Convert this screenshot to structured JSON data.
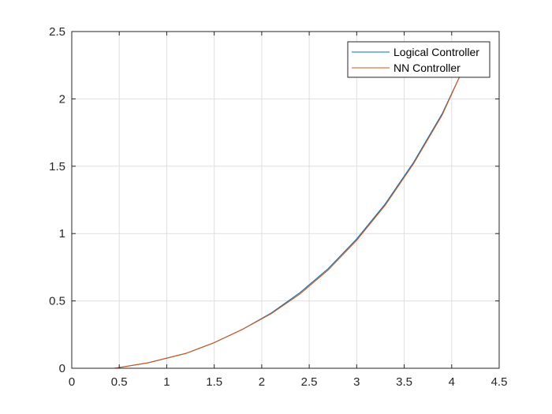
{
  "chart_data": {
    "type": "line",
    "title": "",
    "xlabel": "",
    "ylabel": "",
    "xlim": [
      0,
      4.5
    ],
    "ylim": [
      0,
      2.5
    ],
    "xticks": [
      0,
      0.5,
      1,
      1.5,
      2,
      2.5,
      3,
      3.5,
      4,
      4.5
    ],
    "yticks": [
      0,
      0.5,
      1,
      1.5,
      2,
      2.5
    ],
    "xtick_labels": [
      "0",
      "0.5",
      "1",
      "1.5",
      "2",
      "2.5",
      "3",
      "3.5",
      "4",
      "4.5"
    ],
    "ytick_labels": [
      "0",
      "0.5",
      "1",
      "1.5",
      "2",
      "2.5"
    ],
    "grid": true,
    "legend": {
      "placement": "top-right"
    },
    "series": [
      {
        "name": "Logical Controller",
        "color": "#0072BD",
        "x": [
          0,
          0.45,
          0.8,
          1.2,
          1.5,
          1.8,
          2.1,
          2.4,
          2.7,
          3.0,
          3.3,
          3.6,
          3.9,
          4.1
        ],
        "y": [
          0,
          0,
          0.04,
          0.11,
          0.19,
          0.29,
          0.41,
          0.56,
          0.74,
          0.96,
          1.22,
          1.53,
          1.89,
          2.19
        ]
      },
      {
        "name": "NN Controller",
        "color": "#D95319",
        "x": [
          0,
          0.45,
          0.8,
          1.2,
          1.5,
          1.8,
          2.1,
          2.4,
          2.7,
          3.0,
          3.3,
          3.6,
          3.9,
          4.1
        ],
        "y": [
          0,
          0,
          0.04,
          0.11,
          0.19,
          0.29,
          0.405,
          0.55,
          0.73,
          0.95,
          1.21,
          1.52,
          1.88,
          2.19
        ]
      }
    ]
  }
}
